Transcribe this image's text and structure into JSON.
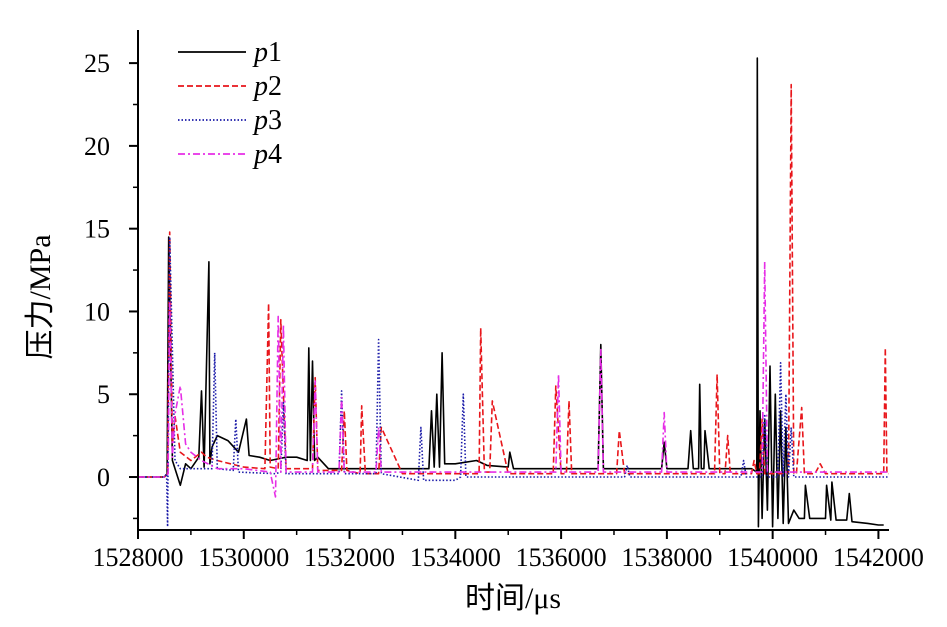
{
  "chart_data": {
    "type": "line",
    "title": "",
    "xlabel": "时间/μs",
    "ylabel": "压力/MPa",
    "xlim": [
      1528000,
      1542200
    ],
    "ylim": [
      -3.2,
      27
    ],
    "x_ticks": [
      1528000,
      1530000,
      1532000,
      1534000,
      1536000,
      1538000,
      1540000,
      1542000
    ],
    "x_tick_labels": [
      "1528000",
      "1530000",
      "1532000",
      "1534000",
      "1536000",
      "1538000",
      "1540000",
      "1542000"
    ],
    "y_ticks": [
      0,
      5,
      10,
      15,
      20,
      25
    ],
    "y_tick_labels": [
      "0",
      "5",
      "10",
      "15",
      "20",
      "25"
    ],
    "grid": false,
    "legend_position": "top-left",
    "series": [
      {
        "name_prefix": "p",
        "name_suffix": "1",
        "color": "#000000",
        "dash": "solid",
        "x": [
          1528000,
          1528500,
          1528550,
          1528580,
          1528650,
          1528800,
          1528900,
          1529000,
          1529150,
          1529200,
          1529250,
          1529340,
          1529360,
          1529400,
          1529500,
          1529700,
          1529900,
          1530050,
          1530100,
          1530300,
          1530500,
          1530800,
          1531000,
          1531200,
          1531230,
          1531260,
          1531300,
          1531340,
          1531400,
          1531600,
          1532000,
          1533000,
          1533500,
          1533550,
          1533600,
          1533650,
          1533700,
          1533750,
          1533800,
          1534000,
          1534400,
          1534600,
          1535000,
          1535030,
          1535100,
          1536000,
          1536700,
          1536750,
          1536800,
          1537000,
          1537500,
          1537900,
          1537950,
          1538000,
          1538400,
          1538450,
          1538500,
          1538600,
          1538620,
          1538650,
          1538700,
          1538720,
          1538800,
          1539200,
          1539500,
          1539600,
          1539700,
          1539710,
          1539730,
          1539760,
          1539800,
          1539850,
          1539900,
          1539950,
          1540000,
          1540050,
          1540100,
          1540150,
          1540200,
          1540250,
          1540300,
          1540400,
          1540500,
          1540600,
          1540620,
          1540700,
          1540900,
          1541000,
          1541020,
          1541100,
          1541120,
          1541200,
          1541400,
          1541450,
          1541500,
          1541800,
          1542000,
          1542100
        ],
        "y": [
          0,
          0,
          0.2,
          14.5,
          1,
          -0.5,
          0.8,
          0.5,
          1.2,
          5.2,
          0.6,
          13,
          0.8,
          1.8,
          2.5,
          2.2,
          1.5,
          3.5,
          1.3,
          1.2,
          1.0,
          1.2,
          1.2,
          1.0,
          7.8,
          1.0,
          7.0,
          1.0,
          1.2,
          0.5,
          0.5,
          0.5,
          0.5,
          4.0,
          0.6,
          5.0,
          0.6,
          7.5,
          0.8,
          0.8,
          1.0,
          0.7,
          0.6,
          1.5,
          0.5,
          0.5,
          0.5,
          8.0,
          0.5,
          0.5,
          0.5,
          0.5,
          2.1,
          0.5,
          0.5,
          2.8,
          0.5,
          0.5,
          5.6,
          0.5,
          0.5,
          2.8,
          0.5,
          0.5,
          0.5,
          0.5,
          0.3,
          25.3,
          -3,
          4,
          -2.5,
          3.5,
          -2,
          6.7,
          -3,
          5,
          -2.5,
          4,
          -2.8,
          3,
          -2.8,
          -2.0,
          -2.5,
          -2.5,
          -0.5,
          -2.5,
          -2.5,
          -2.5,
          -0.5,
          -2.6,
          -0.3,
          -2.6,
          -2.6,
          -1.0,
          -2.7,
          -2.8,
          -2.9,
          -2.9
        ]
      },
      {
        "name_prefix": "p",
        "name_suffix": "2",
        "color": "#e8161b",
        "dash": "dashed",
        "x": [
          1528000,
          1528500,
          1528560,
          1528600,
          1528650,
          1528700,
          1528800,
          1529000,
          1529200,
          1529300,
          1529500,
          1530000,
          1530400,
          1530470,
          1530500,
          1530650,
          1530700,
          1530800,
          1531000,
          1531300,
          1531350,
          1531400,
          1531850,
          1531900,
          1531950,
          1532200,
          1532230,
          1532300,
          1532550,
          1532600,
          1533000,
          1534000,
          1534450,
          1534480,
          1534550,
          1534650,
          1534700,
          1535000,
          1535850,
          1535900,
          1536000,
          1536100,
          1536150,
          1536200,
          1537050,
          1537100,
          1537200,
          1538000,
          1538900,
          1538950,
          1539000,
          1539100,
          1539150,
          1539200,
          1539600,
          1539650,
          1539700,
          1539750,
          1539800,
          1539850,
          1539900,
          1540000,
          1540100,
          1540200,
          1540300,
          1540350,
          1540400,
          1540450,
          1540550,
          1540600,
          1540800,
          1540900,
          1541000,
          1542000,
          1542100,
          1542130,
          1542160,
          1542200
        ],
        "y": [
          0,
          0,
          0.2,
          14.8,
          2,
          3.7,
          1.5,
          1.0,
          1.5,
          1.2,
          1.0,
          0.6,
          0.5,
          10.5,
          0.6,
          0.5,
          9.5,
          0.5,
          0.5,
          0.5,
          6.0,
          0.4,
          0.4,
          4.0,
          0.4,
          0.2,
          4.3,
          0.2,
          0.2,
          3.0,
          0.2,
          0.2,
          0.2,
          9.0,
          0.3,
          0.3,
          4.6,
          0.2,
          0.2,
          5.5,
          0.2,
          0.2,
          4.6,
          0.2,
          0.2,
          2.8,
          0.2,
          0.2,
          0.2,
          6.2,
          0.2,
          0.2,
          2.5,
          0.2,
          0.2,
          1.0,
          0.2,
          0.2,
          3.5,
          0.2,
          0.2,
          0.2,
          0.2,
          0.2,
          0.2,
          23.7,
          0.2,
          0.2,
          4.2,
          0.2,
          0.2,
          0.8,
          0.2,
          0.2,
          0.2,
          7.8,
          0.2,
          0.2
        ]
      },
      {
        "name_prefix": "p",
        "name_suffix": "3",
        "color": "#1a1aa8",
        "dash": "dotted",
        "x": [
          1528000,
          1528500,
          1528540,
          1528560,
          1528600,
          1528700,
          1528800,
          1529000,
          1529300,
          1529400,
          1529450,
          1529500,
          1529800,
          1529850,
          1529900,
          1530600,
          1530700,
          1530750,
          1530800,
          1531500,
          1531800,
          1531850,
          1531900,
          1532500,
          1532550,
          1532600,
          1533300,
          1533350,
          1533400,
          1534000,
          1534100,
          1534150,
          1534200,
          1535000,
          1536000,
          1537000,
          1537200,
          1537250,
          1537300,
          1538000,
          1539000,
          1539400,
          1539450,
          1539500,
          1539800,
          1539850,
          1539900,
          1540100,
          1540150,
          1540200,
          1540250,
          1540300,
          1540350,
          1540400,
          1541000,
          1542000,
          1542200
        ],
        "y": [
          0,
          0,
          0.2,
          -3,
          14.5,
          1.0,
          0.5,
          0.5,
          0.5,
          0.5,
          7.5,
          0.5,
          0.4,
          3.5,
          0.3,
          0.2,
          0.3,
          4.5,
          0.2,
          0.2,
          0.2,
          5.2,
          0.2,
          0.2,
          8.3,
          0.2,
          -0.2,
          3.0,
          -0.2,
          -0.2,
          0.0,
          5.0,
          0.0,
          0.0,
          0.0,
          0.0,
          0.0,
          0.7,
          0.0,
          0.0,
          0.0,
          0.0,
          1.0,
          0.0,
          0.0,
          3.8,
          0.0,
          0.0,
          6.9,
          0.0,
          5.0,
          0.0,
          3.0,
          0.0,
          0.0,
          0.0,
          0.0
        ]
      },
      {
        "name_prefix": "p",
        "name_suffix": "4",
        "color": "#e62ee6",
        "dash": "dash-dot",
        "x": [
          1528000,
          1528500,
          1528570,
          1528600,
          1528650,
          1528700,
          1528800,
          1528900,
          1529000,
          1529200,
          1529500,
          1530000,
          1530500,
          1530600,
          1530650,
          1530700,
          1530750,
          1530800,
          1531000,
          1531300,
          1531350,
          1531400,
          1531800,
          1531850,
          1531900,
          1532500,
          1532550,
          1532600,
          1533000,
          1534000,
          1535000,
          1535900,
          1535950,
          1536000,
          1536700,
          1536750,
          1536800,
          1537000,
          1537900,
          1537950,
          1538000,
          1538500,
          1539000,
          1539700,
          1539800,
          1539850,
          1539900,
          1540000,
          1540500,
          1541000,
          1542000,
          1542200
        ],
        "y": [
          0,
          0,
          0.2,
          10.5,
          1.2,
          3.8,
          5.5,
          2.0,
          1.5,
          1.0,
          0.5,
          0.5,
          0.3,
          -1.2,
          9.7,
          0.3,
          9.2,
          0.3,
          0.3,
          0.3,
          5.8,
          0.3,
          0.3,
          4.8,
          0.3,
          0.3,
          3.0,
          0.3,
          0.3,
          0.3,
          0.3,
          0.3,
          6.2,
          0.3,
          0.3,
          7.7,
          0.3,
          0.3,
          0.3,
          3.9,
          0.3,
          0.3,
          0.3,
          0.3,
          0.3,
          13.0,
          0.3,
          0.3,
          0.3,
          0.3,
          0.3,
          0.3
        ]
      }
    ]
  }
}
